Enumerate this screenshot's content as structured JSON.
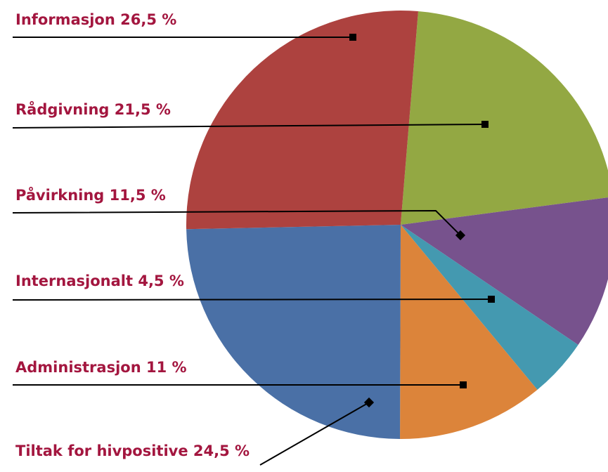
{
  "chart_data": {
    "type": "pie",
    "categories": [
      "Informasjon",
      "Rådgivning",
      "Påvirkning",
      "Internasjonalt",
      "Administrasjon",
      "Tiltak for hivpositive"
    ],
    "values": [
      26.5,
      21.5,
      11.5,
      4.5,
      11,
      24.5
    ],
    "value_labels": [
      "26,5 %",
      "21,5 %",
      "11,5 %",
      "4,5 %",
      "11 %",
      "24,5 %"
    ],
    "colors": [
      "#ad423f",
      "#93a843",
      "#77528d",
      "#4499b0",
      "#dc843a",
      "#4a70a6"
    ]
  }
}
